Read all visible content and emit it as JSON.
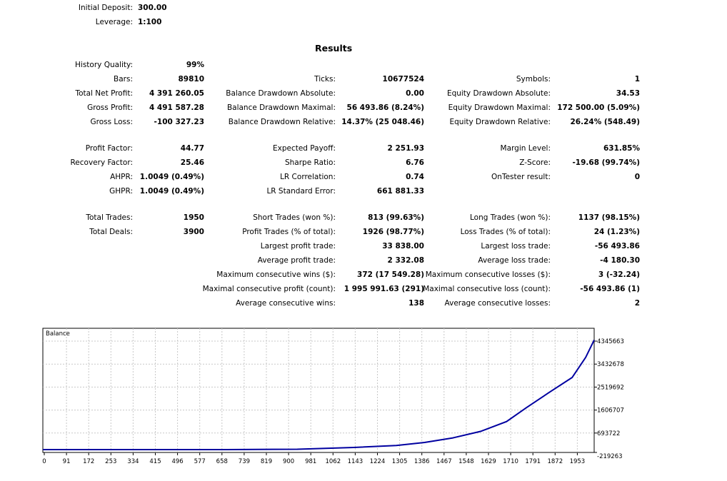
{
  "header": {
    "initial_deposit_label": "Initial Deposit:",
    "initial_deposit_value": "300.00",
    "leverage_label": "Leverage:",
    "leverage_value": "1:100",
    "results_title": "Results"
  },
  "stats": {
    "history_quality": {
      "label": "History Quality:",
      "value": "99%"
    },
    "bars": {
      "label": "Bars:",
      "value": "89810"
    },
    "ticks": {
      "label": "Ticks:",
      "value": "10677524"
    },
    "symbols": {
      "label": "Symbols:",
      "value": "1"
    },
    "total_net_profit": {
      "label": "Total Net Profit:",
      "value": "4 391 260.05"
    },
    "balance_dd_abs": {
      "label": "Balance Drawdown Absolute:",
      "value": "0.00"
    },
    "equity_dd_abs": {
      "label": "Equity Drawdown Absolute:",
      "value": "34.53"
    },
    "gross_profit": {
      "label": "Gross Profit:",
      "value": "4 491 587.28"
    },
    "balance_dd_max": {
      "label": "Balance Drawdown Maximal:",
      "value": "56 493.86 (8.24%)"
    },
    "equity_dd_max": {
      "label": "Equity Drawdown Maximal:",
      "value": "172 500.00 (5.09%)"
    },
    "gross_loss": {
      "label": "Gross Loss:",
      "value": "-100 327.23"
    },
    "balance_dd_rel": {
      "label": "Balance Drawdown Relative:",
      "value": "14.37% (25 048.46)"
    },
    "equity_dd_rel": {
      "label": "Equity Drawdown Relative:",
      "value": "26.24% (548.49)"
    },
    "profit_factor": {
      "label": "Profit Factor:",
      "value": "44.77"
    },
    "expected_payoff": {
      "label": "Expected Payoff:",
      "value": "2 251.93"
    },
    "margin_level": {
      "label": "Margin Level:",
      "value": "631.85%"
    },
    "recovery_factor": {
      "label": "Recovery Factor:",
      "value": "25.46"
    },
    "sharpe_ratio": {
      "label": "Sharpe Ratio:",
      "value": "6.76"
    },
    "z_score": {
      "label": "Z-Score:",
      "value": "-19.68 (99.74%)"
    },
    "ahpr": {
      "label": "AHPR:",
      "value": "1.0049 (0.49%)"
    },
    "lr_correlation": {
      "label": "LR Correlation:",
      "value": "0.74"
    },
    "ontester_result": {
      "label": "OnTester result:",
      "value": "0"
    },
    "ghpr": {
      "label": "GHPR:",
      "value": "1.0049 (0.49%)"
    },
    "lr_std_error": {
      "label": "LR Standard Error:",
      "value": "661 881.33"
    },
    "total_trades": {
      "label": "Total Trades:",
      "value": "1950"
    },
    "short_trades": {
      "label": "Short Trades (won %):",
      "value": "813 (99.63%)"
    },
    "long_trades": {
      "label": "Long Trades (won %):",
      "value": "1137 (98.15%)"
    },
    "total_deals": {
      "label": "Total Deals:",
      "value": "3900"
    },
    "profit_trades": {
      "label": "Profit Trades (% of total):",
      "value": "1926 (98.77%)"
    },
    "loss_trades": {
      "label": "Loss Trades (% of total):",
      "value": "24 (1.23%)"
    },
    "largest_profit": {
      "label": "Largest profit trade:",
      "value": "33 838.00"
    },
    "largest_loss": {
      "label": "Largest loss trade:",
      "value": "-56 493.86"
    },
    "average_profit": {
      "label": "Average profit trade:",
      "value": "2 332.08"
    },
    "average_loss": {
      "label": "Average loss trade:",
      "value": "-4 180.30"
    },
    "max_consec_wins": {
      "label": "Maximum consecutive wins ($):",
      "value": "372 (17 549.28)"
    },
    "max_consec_losses": {
      "label": "Maximum consecutive losses ($):",
      "value": "3 (-32.24)"
    },
    "maximal_consec_profit": {
      "label": "Maximal consecutive profit (count):",
      "value": "1 995 991.63 (291)"
    },
    "maximal_consec_loss": {
      "label": "Maximal consecutive loss (count):",
      "value": "-56 493.86 (1)"
    },
    "avg_consec_wins": {
      "label": "Average consecutive wins:",
      "value": "138"
    },
    "avg_consec_losses": {
      "label": "Average consecutive losses:",
      "value": "2"
    }
  },
  "chart_data": {
    "type": "line",
    "title": "Balance",
    "x_ticks": [
      "0",
      "91",
      "172",
      "253",
      "334",
      "415",
      "496",
      "577",
      "658",
      "739",
      "819",
      "900",
      "981",
      "1062",
      "1143",
      "1224",
      "1305",
      "1386",
      "1467",
      "1548",
      "1629",
      "1710",
      "1791",
      "1872",
      "1953"
    ],
    "y_ticks": [
      "4345663",
      "3432678",
      "2519692",
      "1606707",
      "693722",
      "-219263"
    ],
    "xlim": [
      0,
      1950
    ],
    "ylim": [
      -219263,
      4345663
    ],
    "grid": true,
    "line_color": "#0000a0",
    "series": [
      {
        "x": [
          0,
          300,
          650,
          900,
          1100,
          1250,
          1350,
          1450,
          1548,
          1640,
          1710,
          1790,
          1872,
          1920,
          1950
        ],
        "y": [
          300,
          4000,
          20000,
          50000,
          120000,
          200000,
          320000,
          500000,
          760000,
          1150000,
          1700000,
          2300000,
          2900000,
          3700000,
          4391560
        ]
      }
    ]
  }
}
